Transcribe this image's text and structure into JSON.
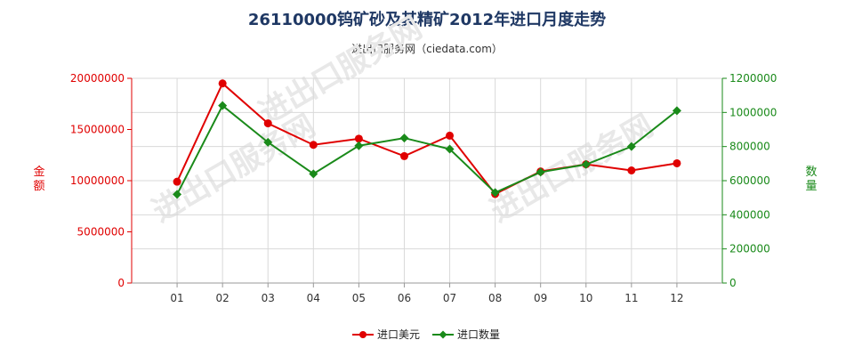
{
  "chart_data": {
    "type": "line",
    "title": "26110000钨矿砂及其精矿2012年进口月度走势",
    "subtitle": "进出口服务网（ciedata.com）",
    "categories": [
      "01",
      "02",
      "03",
      "04",
      "05",
      "06",
      "07",
      "08",
      "09",
      "10",
      "11",
      "12"
    ],
    "y_left": {
      "label": "金额",
      "ticks": [
        "0",
        "5000000",
        "10000000",
        "15000000",
        "20000000"
      ],
      "range": [
        0,
        20000000
      ]
    },
    "y_right": {
      "label": "数量",
      "ticks": [
        "0",
        "200000",
        "400000",
        "600000",
        "800000",
        "1000000",
        "1200000"
      ],
      "range": [
        0,
        1200000
      ]
    },
    "series": [
      {
        "name": "进口美元",
        "axis": "left",
        "color": "#e00000",
        "values": [
          9900000,
          19500000,
          15600000,
          13500000,
          14100000,
          12400000,
          14400000,
          8700000,
          10900000,
          11600000,
          11000000,
          11700000
        ]
      },
      {
        "name": "进口数量",
        "axis": "right",
        "color": "#1a8a1a",
        "values": [
          520000,
          1040000,
          825000,
          640000,
          805000,
          850000,
          785000,
          530000,
          650000,
          695000,
          800000,
          1010000
        ]
      }
    ],
    "grid": true,
    "legend_position": "bottom"
  },
  "watermark": "进出口服务网"
}
